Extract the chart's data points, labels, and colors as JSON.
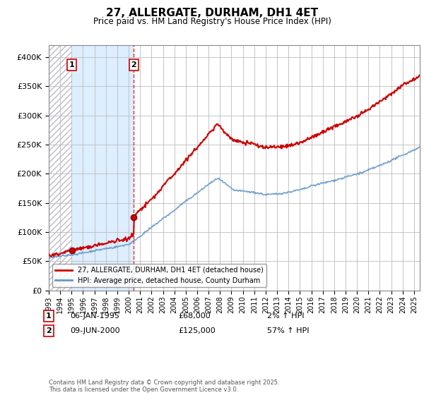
{
  "title": "27, ALLERGATE, DURHAM, DH1 4ET",
  "subtitle": "Price paid vs. HM Land Registry's House Price Index (HPI)",
  "ylim": [
    0,
    420000
  ],
  "yticks": [
    0,
    50000,
    100000,
    150000,
    200000,
    250000,
    300000,
    350000,
    400000
  ],
  "ytick_labels": [
    "£0",
    "£50K",
    "£100K",
    "£150K",
    "£200K",
    "£250K",
    "£300K",
    "£350K",
    "£400K"
  ],
  "legend_entry1": "27, ALLERGATE, DURHAM, DH1 4ET (detached house)",
  "legend_entry2": "HPI: Average price, detached house, County Durham",
  "annotation1_date": "06-JAN-1995",
  "annotation1_price": "£68,000",
  "annotation1_hpi": "2% ↑ HPI",
  "annotation2_date": "09-JUN-2000",
  "annotation2_price": "£125,000",
  "annotation2_hpi": "57% ↑ HPI",
  "footnote": "Contains HM Land Registry data © Crown copyright and database right 2025.\nThis data is licensed under the Open Government Licence v3.0.",
  "price_color": "#cc0000",
  "hpi_color": "#6699cc",
  "shade_color": "#ddeeff",
  "grid_color": "#bbbbbb",
  "sale1_x": 1995.03,
  "sale1_y": 68000,
  "sale2_x": 2000.44,
  "sale2_y": 125000,
  "xmin": 1993,
  "xmax": 2025.5
}
